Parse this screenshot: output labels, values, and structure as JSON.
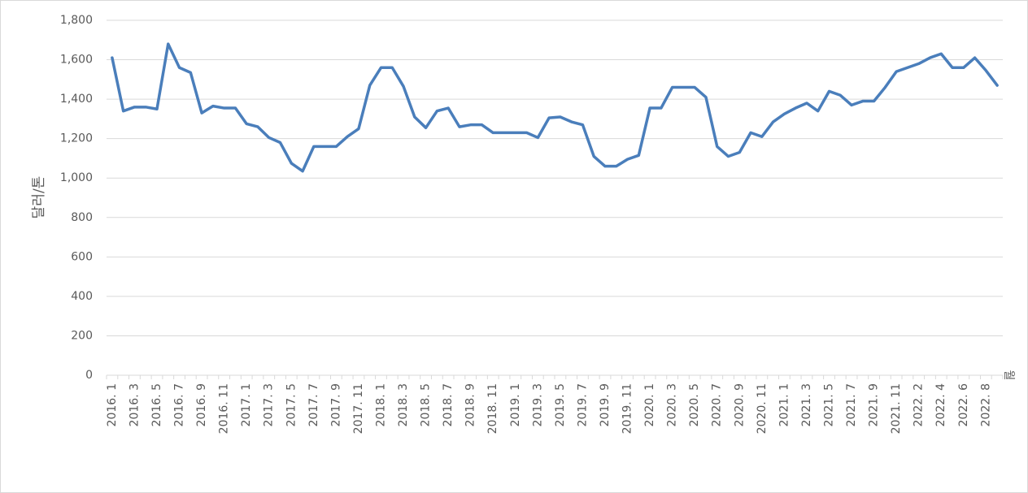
{
  "chart_data": {
    "type": "line",
    "y_label": "달러/톤",
    "x_label": "월",
    "categories": [
      "2016. 1",
      null,
      "2016. 3",
      null,
      "2016. 5",
      null,
      "2016. 7",
      null,
      "2016. 9",
      null,
      "2016. 11",
      null,
      "2017. 1",
      null,
      "2017. 3",
      null,
      "2017. 5",
      null,
      "2017. 7",
      null,
      "2017. 9",
      null,
      "2017. 11",
      null,
      "2018. 1",
      null,
      "2018. 3",
      null,
      "2018. 5",
      null,
      "2018. 7",
      null,
      "2018. 9",
      null,
      "2018. 11",
      null,
      "2019. 1",
      null,
      "2019. 3",
      null,
      "2019. 5",
      null,
      "2019. 7",
      null,
      "2019. 9",
      null,
      "2019. 11",
      null,
      "2020. 1",
      null,
      "2020. 3",
      null,
      "2020. 5",
      null,
      "2020. 7",
      null,
      "2020. 9",
      null,
      "2020. 11",
      null,
      "2021. 1",
      null,
      "2021. 3",
      null,
      "2021. 5",
      null,
      "2021. 7",
      null,
      "2021. 9",
      null,
      "2021. 11",
      null,
      "2022. 2",
      null,
      "2022. 4",
      null,
      "2022. 6",
      null,
      "2022. 8",
      null
    ],
    "values": [
      1610,
      1340,
      1360,
      1360,
      1350,
      1680,
      1560,
      1535,
      1330,
      1365,
      1355,
      1355,
      1275,
      1260,
      1205,
      1180,
      1075,
      1035,
      1160,
      1160,
      1160,
      1210,
      1250,
      1470,
      1560,
      1560,
      1465,
      1310,
      1255,
      1340,
      1355,
      1260,
      1270,
      1270,
      1230,
      1230,
      1230,
      1230,
      1205,
      1305,
      1310,
      1285,
      1270,
      1110,
      1060,
      1060,
      1095,
      1115,
      1355,
      1355,
      1460,
      1460,
      1460,
      1410,
      1160,
      1110,
      1130,
      1230,
      1210,
      1285,
      1325,
      1355,
      1380,
      1340,
      1440,
      1420,
      1370,
      1390,
      1390,
      1460,
      1540,
      1560,
      1580,
      1610,
      1630,
      1560,
      1560,
      1610,
      1545,
      1470
    ],
    "color": "#4a7ebb",
    "ylim": [
      0,
      1800
    ],
    "yticks": [
      0,
      200,
      400,
      600,
      800,
      {
        "value": 1000,
        "label": "1,000"
      },
      {
        "value": 1200,
        "label": "1,200"
      },
      {
        "value": 1400,
        "label": "1,400"
      },
      {
        "value": 1600,
        "label": "1,600"
      },
      {
        "value": 1800,
        "label": "1,800"
      }
    ],
    "grid": true
  }
}
